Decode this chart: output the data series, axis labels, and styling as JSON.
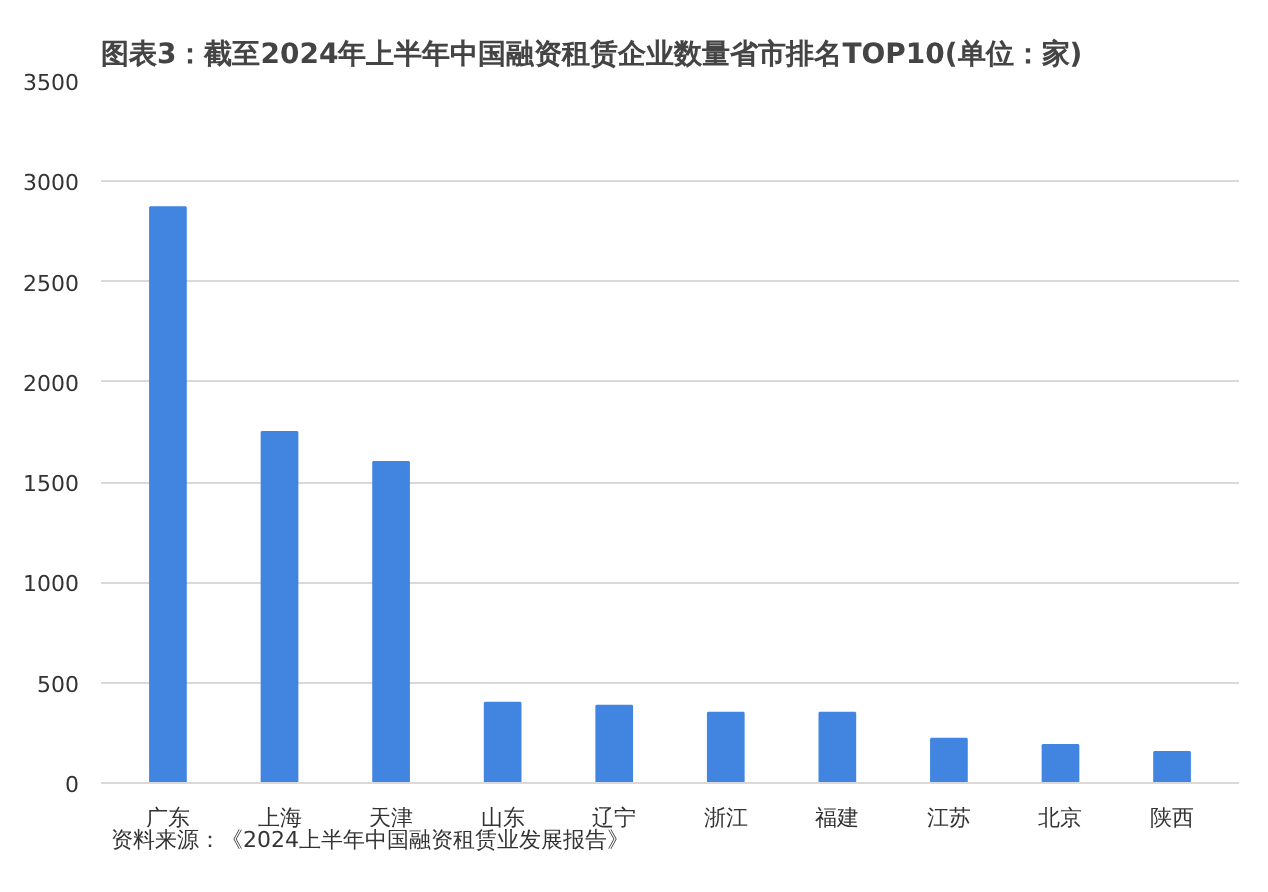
{
  "chart_data": {
    "type": "bar",
    "title": "图表3：截至2024年上半年中国融资租赁企业数量省市排名TOP10(单位：家)",
    "categories": [
      "广东",
      "上海",
      "天津",
      "山东",
      "辽宁",
      "浙江",
      "福建",
      "江苏",
      "北京",
      "陕西"
    ],
    "values": [
      2870,
      1750,
      1600,
      400,
      385,
      350,
      350,
      220,
      190,
      155
    ],
    "color": "#4185e0",
    "ylim": [
      0,
      3500
    ],
    "yticks": [
      0,
      500,
      1000,
      1500,
      2000,
      2500,
      3000,
      3500
    ],
    "grid": "y",
    "annotations": [
      "资料来源：《2024上半年中国融资租赁业发展报告》"
    ]
  }
}
